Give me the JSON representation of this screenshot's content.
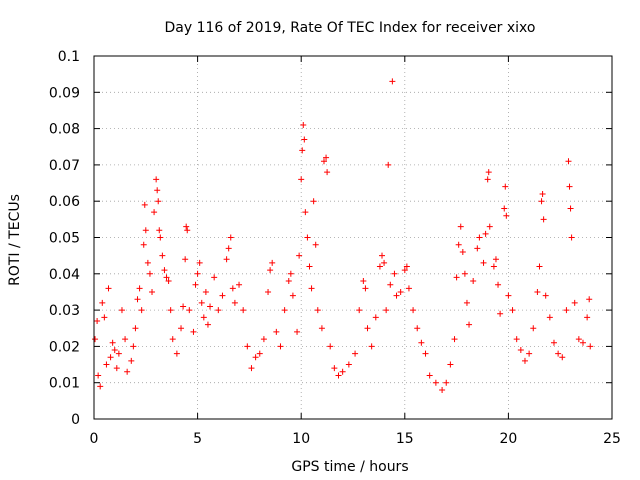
{
  "chart_data": {
    "type": "scatter",
    "title": "Day 116 of 2019, Rate Of TEC Index for receiver xixo",
    "xlabel": "GPS time / hours",
    "ylabel": "ROTI / TECUs",
    "xlim": [
      0,
      25
    ],
    "ylim": [
      0,
      0.1
    ],
    "grid": true,
    "marker": "+",
    "color": "#ff0000",
    "x_ticks": [
      0,
      5,
      10,
      15,
      20,
      25
    ],
    "x_tick_labels": [
      "0",
      "5",
      "10",
      "15",
      "20",
      "25"
    ],
    "y_ticks": [
      0,
      0.01,
      0.02,
      0.03,
      0.04,
      0.05,
      0.06,
      0.07,
      0.08,
      0.09,
      0.1
    ],
    "y_tick_labels": [
      "0",
      "0.01",
      "0.02",
      "0.03",
      "0.04",
      "0.05",
      "0.06",
      "0.07",
      "0.08",
      "0.09",
      "0.1"
    ],
    "series": [
      {
        "name": "ROTI",
        "points": [
          [
            0.05,
            0.022
          ],
          [
            0.15,
            0.027
          ],
          [
            0.2,
            0.012
          ],
          [
            0.3,
            0.009
          ],
          [
            0.4,
            0.032
          ],
          [
            0.5,
            0.028
          ],
          [
            0.6,
            0.015
          ],
          [
            0.7,
            0.036
          ],
          [
            0.8,
            0.017
          ],
          [
            0.9,
            0.021
          ],
          [
            1.0,
            0.019
          ],
          [
            1.1,
            0.014
          ],
          [
            1.2,
            0.018
          ],
          [
            1.35,
            0.03
          ],
          [
            1.5,
            0.022
          ],
          [
            1.6,
            0.013
          ],
          [
            1.8,
            0.016
          ],
          [
            1.9,
            0.02
          ],
          [
            2.0,
            0.025
          ],
          [
            2.1,
            0.033
          ],
          [
            2.2,
            0.036
          ],
          [
            2.3,
            0.03
          ],
          [
            2.4,
            0.048
          ],
          [
            2.45,
            0.059
          ],
          [
            2.5,
            0.052
          ],
          [
            2.6,
            0.043
          ],
          [
            2.7,
            0.04
          ],
          [
            2.8,
            0.035
          ],
          [
            2.9,
            0.057
          ],
          [
            3.0,
            0.066
          ],
          [
            3.05,
            0.063
          ],
          [
            3.1,
            0.06
          ],
          [
            3.15,
            0.052
          ],
          [
            3.2,
            0.05
          ],
          [
            3.3,
            0.045
          ],
          [
            3.4,
            0.041
          ],
          [
            3.5,
            0.039
          ],
          [
            3.6,
            0.038
          ],
          [
            3.7,
            0.03
          ],
          [
            3.8,
            0.022
          ],
          [
            4.0,
            0.018
          ],
          [
            4.2,
            0.025
          ],
          [
            4.3,
            0.031
          ],
          [
            4.4,
            0.044
          ],
          [
            4.45,
            0.053
          ],
          [
            4.5,
            0.052
          ],
          [
            4.6,
            0.03
          ],
          [
            4.8,
            0.024
          ],
          [
            4.9,
            0.037
          ],
          [
            5.0,
            0.04
          ],
          [
            5.1,
            0.043
          ],
          [
            5.2,
            0.032
          ],
          [
            5.3,
            0.028
          ],
          [
            5.4,
            0.035
          ],
          [
            5.5,
            0.026
          ],
          [
            5.6,
            0.031
          ],
          [
            5.8,
            0.039
          ],
          [
            6.0,
            0.03
          ],
          [
            6.2,
            0.034
          ],
          [
            6.4,
            0.044
          ],
          [
            6.5,
            0.047
          ],
          [
            6.6,
            0.05
          ],
          [
            6.7,
            0.036
          ],
          [
            6.8,
            0.032
          ],
          [
            7.0,
            0.037
          ],
          [
            7.2,
            0.03
          ],
          [
            7.4,
            0.02
          ],
          [
            7.6,
            0.014
          ],
          [
            7.8,
            0.017
          ],
          [
            8.0,
            0.018
          ],
          [
            8.2,
            0.022
          ],
          [
            8.4,
            0.035
          ],
          [
            8.5,
            0.041
          ],
          [
            8.6,
            0.043
          ],
          [
            8.8,
            0.024
          ],
          [
            9.0,
            0.02
          ],
          [
            9.2,
            0.03
          ],
          [
            9.4,
            0.038
          ],
          [
            9.5,
            0.04
          ],
          [
            9.6,
            0.034
          ],
          [
            9.8,
            0.024
          ],
          [
            9.9,
            0.045
          ],
          [
            10.0,
            0.066
          ],
          [
            10.05,
            0.074
          ],
          [
            10.1,
            0.081
          ],
          [
            10.15,
            0.077
          ],
          [
            10.2,
            0.057
          ],
          [
            10.3,
            0.05
          ],
          [
            10.4,
            0.042
          ],
          [
            10.5,
            0.036
          ],
          [
            10.6,
            0.06
          ],
          [
            10.7,
            0.048
          ],
          [
            10.8,
            0.03
          ],
          [
            11.0,
            0.025
          ],
          [
            11.1,
            0.071
          ],
          [
            11.2,
            0.072
          ],
          [
            11.25,
            0.068
          ],
          [
            11.4,
            0.02
          ],
          [
            11.6,
            0.014
          ],
          [
            11.8,
            0.012
          ],
          [
            12.0,
            0.013
          ],
          [
            12.3,
            0.015
          ],
          [
            12.6,
            0.018
          ],
          [
            12.8,
            0.03
          ],
          [
            13.0,
            0.038
          ],
          [
            13.1,
            0.036
          ],
          [
            13.2,
            0.025
          ],
          [
            13.4,
            0.02
          ],
          [
            13.6,
            0.028
          ],
          [
            13.8,
            0.042
          ],
          [
            13.9,
            0.045
          ],
          [
            14.0,
            0.043
          ],
          [
            14.1,
            0.03
          ],
          [
            14.2,
            0.07
          ],
          [
            14.3,
            0.037
          ],
          [
            14.4,
            0.093
          ],
          [
            14.5,
            0.04
          ],
          [
            14.6,
            0.034
          ],
          [
            14.8,
            0.035
          ],
          [
            15.0,
            0.041
          ],
          [
            15.1,
            0.042
          ],
          [
            15.2,
            0.036
          ],
          [
            15.4,
            0.03
          ],
          [
            15.6,
            0.025
          ],
          [
            15.8,
            0.021
          ],
          [
            16.0,
            0.018
          ],
          [
            16.2,
            0.012
          ],
          [
            16.5,
            0.01
          ],
          [
            16.8,
            0.008
          ],
          [
            17.0,
            0.01
          ],
          [
            17.2,
            0.015
          ],
          [
            17.4,
            0.022
          ],
          [
            17.5,
            0.039
          ],
          [
            17.6,
            0.048
          ],
          [
            17.7,
            0.053
          ],
          [
            17.8,
            0.046
          ],
          [
            17.9,
            0.04
          ],
          [
            18.0,
            0.032
          ],
          [
            18.1,
            0.026
          ],
          [
            18.3,
            0.038
          ],
          [
            18.5,
            0.047
          ],
          [
            18.6,
            0.05
          ],
          [
            18.8,
            0.043
          ],
          [
            18.9,
            0.051
          ],
          [
            19.0,
            0.066
          ],
          [
            19.05,
            0.068
          ],
          [
            19.1,
            0.053
          ],
          [
            19.3,
            0.042
          ],
          [
            19.4,
            0.044
          ],
          [
            19.5,
            0.037
          ],
          [
            19.6,
            0.029
          ],
          [
            19.8,
            0.058
          ],
          [
            19.85,
            0.064
          ],
          [
            19.9,
            0.056
          ],
          [
            20.0,
            0.034
          ],
          [
            20.2,
            0.03
          ],
          [
            20.4,
            0.022
          ],
          [
            20.6,
            0.019
          ],
          [
            20.8,
            0.016
          ],
          [
            21.0,
            0.018
          ],
          [
            21.2,
            0.025
          ],
          [
            21.4,
            0.035
          ],
          [
            21.5,
            0.042
          ],
          [
            21.6,
            0.06
          ],
          [
            21.65,
            0.062
          ],
          [
            21.7,
            0.055
          ],
          [
            21.8,
            0.034
          ],
          [
            22.0,
            0.028
          ],
          [
            22.2,
            0.021
          ],
          [
            22.4,
            0.018
          ],
          [
            22.6,
            0.017
          ],
          [
            22.8,
            0.03
          ],
          [
            22.9,
            0.071
          ],
          [
            22.95,
            0.064
          ],
          [
            23.0,
            0.058
          ],
          [
            23.05,
            0.05
          ],
          [
            23.2,
            0.032
          ],
          [
            23.4,
            0.022
          ],
          [
            23.6,
            0.021
          ],
          [
            23.8,
            0.028
          ],
          [
            23.9,
            0.033
          ],
          [
            23.95,
            0.02
          ]
        ]
      }
    ]
  }
}
